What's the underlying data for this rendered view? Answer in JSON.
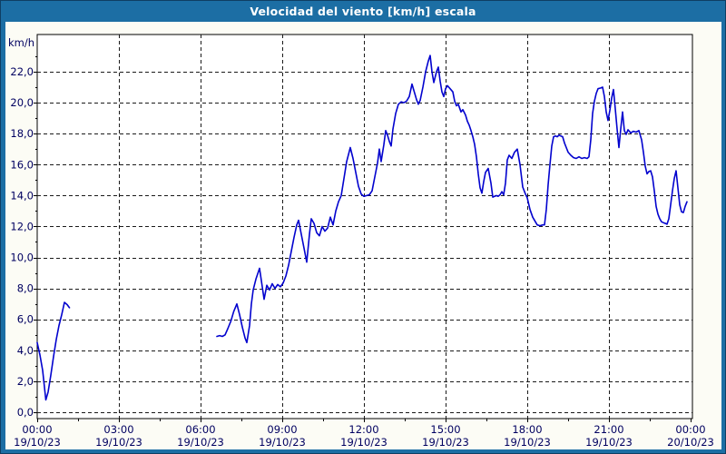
{
  "window": {
    "title": "Velocidad del viento [km/h] escala"
  },
  "colors": {
    "titlebar_bg": "#1C6EA4",
    "frame_border": "#1C6EA4",
    "content_bg": "#FCFCF5",
    "plot_bg": "#FFFFFF",
    "plot_frame": "#000000",
    "grid_color": "#1A1A1A",
    "axis_text": "#000060",
    "title_text": "#FFFFFF",
    "line_color": "#0202CE"
  },
  "chart_data": {
    "type": "line",
    "title": "Velocidad del viento [km/h] escala",
    "y_unit_label": "km/h",
    "decimal_style": "comma",
    "ylim": [
      0,
      23.1
    ],
    "xlim_minutes": [
      0,
      1440
    ],
    "grid": true,
    "legend": "none",
    "yticks": [
      {
        "value": 0,
        "label": "0,0"
      },
      {
        "value": 2,
        "label": "2,0"
      },
      {
        "value": 4,
        "label": "4,0"
      },
      {
        "value": 6,
        "label": "6,0"
      },
      {
        "value": 8,
        "label": "8,0"
      },
      {
        "value": 10,
        "label": "10,0"
      },
      {
        "value": 12,
        "label": "12,0"
      },
      {
        "value": 14,
        "label": "14,0"
      },
      {
        "value": 16,
        "label": "16,0"
      },
      {
        "value": 18,
        "label": "18,0"
      },
      {
        "value": 20,
        "label": "20,0"
      },
      {
        "value": 22,
        "label": "22,0"
      }
    ],
    "xticks": [
      {
        "minutes": 0,
        "time": "00:00",
        "date": "19/10/23"
      },
      {
        "minutes": 180,
        "time": "03:00",
        "date": "19/10/23"
      },
      {
        "minutes": 360,
        "time": "06:00",
        "date": "19/10/23"
      },
      {
        "minutes": 540,
        "time": "09:00",
        "date": "19/10/23"
      },
      {
        "minutes": 720,
        "time": "12:00",
        "date": "19/10/23"
      },
      {
        "minutes": 900,
        "time": "15:00",
        "date": "19/10/23"
      },
      {
        "minutes": 1080,
        "time": "18:00",
        "date": "19/10/23"
      },
      {
        "minutes": 1260,
        "time": "21:00",
        "date": "19/10/23"
      },
      {
        "minutes": 1440,
        "time": "00:00",
        "date": "20/10/23"
      }
    ],
    "series": [
      {
        "name": "Velocidad del viento",
        "unit": "km/h",
        "color": "#0202CE",
        "segments": [
          [
            [
              0,
              4.5
            ],
            [
              6,
              3.7
            ],
            [
              12,
              2.7
            ],
            [
              19,
              0.8
            ],
            [
              24,
              1.3
            ],
            [
              30,
              2.4
            ],
            [
              36,
              3.6
            ],
            [
              42,
              4.7
            ],
            [
              48,
              5.6
            ],
            [
              54,
              6.3
            ],
            [
              60,
              7.1
            ],
            [
              66,
              6.95
            ],
            [
              71,
              6.75
            ]
          ],
          [
            [
              396,
              4.9
            ],
            [
              402,
              4.95
            ],
            [
              408,
              4.9
            ],
            [
              414,
              5.0
            ],
            [
              420,
              5.4
            ],
            [
              427,
              5.9
            ],
            [
              433,
              6.5
            ],
            [
              440,
              7.0
            ],
            [
              446,
              6.3
            ],
            [
              452,
              5.5
            ],
            [
              458,
              4.8
            ],
            [
              462,
              4.5
            ],
            [
              468,
              5.6
            ],
            [
              472,
              7.0
            ],
            [
              476,
              7.9
            ],
            [
              482,
              8.6
            ],
            [
              490,
              9.3
            ],
            [
              496,
              8.1
            ],
            [
              500,
              7.3
            ],
            [
              506,
              8.2
            ],
            [
              512,
              7.9
            ],
            [
              518,
              8.3
            ],
            [
              524,
              8.0
            ],
            [
              530,
              8.25
            ],
            [
              536,
              8.1
            ],
            [
              542,
              8.35
            ],
            [
              548,
              8.8
            ],
            [
              554,
              9.5
            ],
            [
              560,
              10.4
            ],
            [
              566,
              11.3
            ],
            [
              572,
              12.1
            ],
            [
              576,
              12.4
            ],
            [
              582,
              11.5
            ],
            [
              588,
              10.6
            ],
            [
              594,
              9.7
            ],
            [
              600,
              11.5
            ],
            [
              604,
              12.5
            ],
            [
              610,
              12.2
            ],
            [
              616,
              11.6
            ],
            [
              622,
              11.4
            ],
            [
              628,
              12.0
            ],
            [
              634,
              11.7
            ],
            [
              640,
              11.9
            ],
            [
              646,
              12.6
            ],
            [
              652,
              12.1
            ],
            [
              658,
              13.0
            ],
            [
              664,
              13.6
            ],
            [
              670,
              14.0
            ],
            [
              676,
              15.1
            ],
            [
              682,
              16.2
            ],
            [
              690,
              17.1
            ],
            [
              696,
              16.4
            ],
            [
              702,
              15.5
            ],
            [
              708,
              14.6
            ],
            [
              714,
              14.1
            ],
            [
              720,
              13.95
            ],
            [
              726,
              14.0
            ],
            [
              732,
              14.05
            ],
            [
              738,
              14.3
            ],
            [
              744,
              15.2
            ],
            [
              750,
              16.1
            ],
            [
              754,
              17.0
            ],
            [
              758,
              16.2
            ],
            [
              764,
              17.3
            ],
            [
              768,
              18.2
            ],
            [
              772,
              17.9
            ],
            [
              776,
              17.5
            ],
            [
              780,
              17.2
            ],
            [
              784,
              18.3
            ],
            [
              790,
              19.3
            ],
            [
              796,
              19.9
            ],
            [
              802,
              20.05
            ],
            [
              808,
              20.0
            ],
            [
              814,
              20.1
            ],
            [
              820,
              20.4
            ],
            [
              826,
              21.2
            ],
            [
              830,
              20.8
            ],
            [
              836,
              20.2
            ],
            [
              840,
              19.9
            ],
            [
              844,
              20.15
            ],
            [
              850,
              21.0
            ],
            [
              856,
              22.0
            ],
            [
              862,
              22.7
            ],
            [
              866,
              23.05
            ],
            [
              870,
              22.0
            ],
            [
              874,
              21.3
            ],
            [
              880,
              22.0
            ],
            [
              884,
              22.3
            ],
            [
              888,
              21.4
            ],
            [
              892,
              20.7
            ],
            [
              896,
              20.4
            ],
            [
              900,
              20.9
            ],
            [
              904,
              21.1
            ],
            [
              910,
              20.9
            ],
            [
              916,
              20.7
            ],
            [
              920,
              20.1
            ],
            [
              924,
              19.8
            ],
            [
              928,
              19.9
            ],
            [
              934,
              19.4
            ],
            [
              938,
              19.55
            ],
            [
              944,
              19.2
            ],
            [
              948,
              18.8
            ],
            [
              952,
              18.55
            ],
            [
              956,
              18.2
            ],
            [
              960,
              17.8
            ],
            [
              964,
              17.3
            ],
            [
              968,
              16.5
            ],
            [
              972,
              15.4
            ],
            [
              976,
              14.5
            ],
            [
              980,
              14.15
            ],
            [
              984,
              14.9
            ],
            [
              988,
              15.5
            ],
            [
              994,
              15.75
            ],
            [
              1000,
              14.8
            ],
            [
              1004,
              13.9
            ],
            [
              1008,
              13.95
            ],
            [
              1012,
              14.0
            ],
            [
              1016,
              13.95
            ],
            [
              1020,
              14.05
            ],
            [
              1024,
              14.25
            ],
            [
              1028,
              14.05
            ],
            [
              1032,
              14.8
            ],
            [
              1036,
              16.3
            ],
            [
              1040,
              16.6
            ],
            [
              1046,
              16.4
            ],
            [
              1052,
              16.8
            ],
            [
              1058,
              17.0
            ],
            [
              1064,
              16.0
            ],
            [
              1070,
              14.55
            ],
            [
              1076,
              14.1
            ],
            [
              1080,
              13.85
            ],
            [
              1086,
              13.1
            ],
            [
              1092,
              12.6
            ],
            [
              1098,
              12.3
            ],
            [
              1102,
              12.1
            ],
            [
              1108,
              12.05
            ],
            [
              1114,
              12.1
            ],
            [
              1118,
              12.1
            ],
            [
              1122,
              13.1
            ],
            [
              1126,
              14.7
            ],
            [
              1130,
              16.0
            ],
            [
              1134,
              17.2
            ],
            [
              1138,
              17.8
            ],
            [
              1142,
              17.85
            ],
            [
              1146,
              17.8
            ],
            [
              1150,
              17.9
            ],
            [
              1154,
              17.85
            ],
            [
              1158,
              17.8
            ],
            [
              1162,
              17.4
            ],
            [
              1166,
              17.1
            ],
            [
              1170,
              16.8
            ],
            [
              1176,
              16.6
            ],
            [
              1182,
              16.45
            ],
            [
              1188,
              16.4
            ],
            [
              1194,
              16.5
            ],
            [
              1200,
              16.4
            ],
            [
              1206,
              16.45
            ],
            [
              1212,
              16.4
            ],
            [
              1216,
              16.5
            ],
            [
              1220,
              17.6
            ],
            [
              1224,
              19.3
            ],
            [
              1228,
              20.1
            ],
            [
              1232,
              20.6
            ],
            [
              1236,
              20.9
            ],
            [
              1242,
              20.95
            ],
            [
              1246,
              21.0
            ],
            [
              1250,
              20.4
            ],
            [
              1254,
              19.4
            ],
            [
              1258,
              18.85
            ],
            [
              1262,
              19.5
            ],
            [
              1266,
              20.3
            ],
            [
              1270,
              20.85
            ],
            [
              1274,
              19.6
            ],
            [
              1278,
              18.3
            ],
            [
              1282,
              17.1
            ],
            [
              1286,
              18.3
            ],
            [
              1290,
              19.4
            ],
            [
              1294,
              18.2
            ],
            [
              1298,
              17.95
            ],
            [
              1302,
              18.25
            ],
            [
              1308,
              18.05
            ],
            [
              1314,
              18.15
            ],
            [
              1320,
              18.1
            ],
            [
              1326,
              18.2
            ],
            [
              1332,
              17.6
            ],
            [
              1336,
              16.8
            ],
            [
              1340,
              15.9
            ],
            [
              1344,
              15.4
            ],
            [
              1348,
              15.55
            ],
            [
              1352,
              15.6
            ],
            [
              1356,
              15.2
            ],
            [
              1360,
              14.3
            ],
            [
              1364,
              13.3
            ],
            [
              1368,
              12.8
            ],
            [
              1372,
              12.5
            ],
            [
              1376,
              12.3
            ],
            [
              1380,
              12.25
            ],
            [
              1384,
              12.2
            ],
            [
              1388,
              12.15
            ],
            [
              1392,
              12.5
            ],
            [
              1396,
              13.4
            ],
            [
              1400,
              14.3
            ],
            [
              1404,
              15.1
            ],
            [
              1408,
              15.6
            ],
            [
              1412,
              14.5
            ],
            [
              1416,
              13.4
            ],
            [
              1420,
              12.95
            ],
            [
              1424,
              12.9
            ],
            [
              1428,
              13.3
            ],
            [
              1432,
              13.6
            ]
          ]
        ]
      }
    ]
  }
}
